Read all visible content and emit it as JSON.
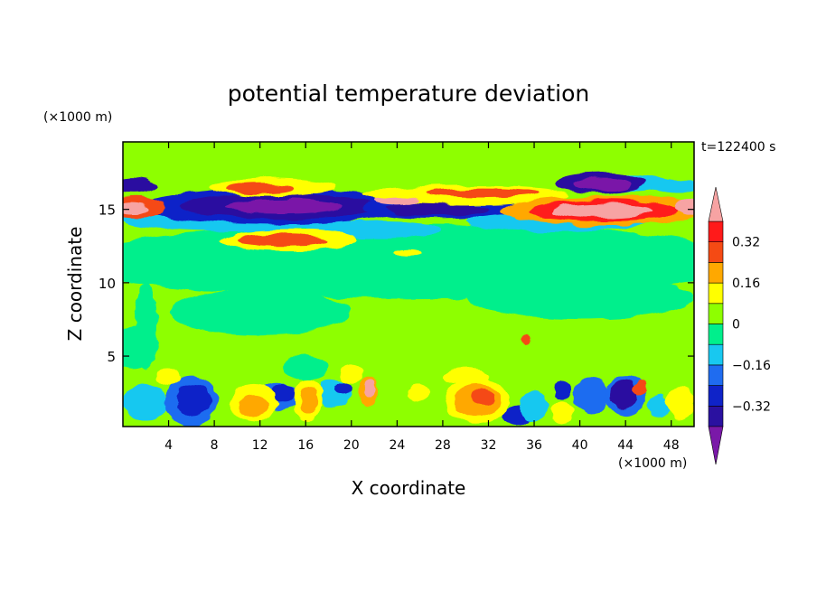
{
  "chart_data": {
    "type": "heatmap",
    "title": "potential temperature deviation",
    "xlabel": "X coordinate",
    "ylabel": "Z coordinate",
    "x_unit_label": "(×1000 m)",
    "y_unit_label": "(×1000 m)",
    "time_label": "t=122400 s",
    "xlim": [
      0,
      50
    ],
    "ylim": [
      0.2,
      19.6
    ],
    "x_ticks": [
      4,
      8,
      12,
      16,
      20,
      24,
      28,
      32,
      36,
      40,
      44,
      48
    ],
    "y_ticks": [
      5,
      10,
      15
    ],
    "colorbar": {
      "levels": [
        -0.44,
        -0.4,
        -0.32,
        -0.24,
        -0.16,
        -0.08,
        0,
        0.08,
        0.16,
        0.24,
        0.32,
        0.4,
        0.44
      ],
      "tick_values": [
        0.32,
        0.16,
        0,
        -0.16,
        -0.32
      ],
      "tick_labels": [
        "0.32",
        "0.16",
        "0",
        "-0.16",
        "-0.32"
      ],
      "colors": [
        "#7a19a8",
        "#2a11a0",
        "#0f23c8",
        "#1f6cf0",
        "#18c8f0",
        "#00ef8c",
        "#8eff00",
        "#ffff00",
        "#ffa800",
        "#f54a14",
        "#ff1a1a",
        "#f7a3a3"
      ],
      "extend": "both"
    },
    "features": [
      {
        "kind": "background",
        "value": 0.02
      },
      {
        "x": 25,
        "y": 11.5,
        "rx": 30,
        "ry": 2.5,
        "value": -0.02
      },
      {
        "x": 12,
        "y": 8,
        "rx": 8,
        "ry": 1.5,
        "value": -0.02
      },
      {
        "x": 40,
        "y": 9,
        "rx": 10,
        "ry": 1.5,
        "value": -0.02
      },
      {
        "x": 1,
        "y": 5.5,
        "rx": 2,
        "ry": 1.5,
        "value": -0.02
      },
      {
        "x": 2,
        "y": 7,
        "rx": 1,
        "ry": 3,
        "value": -0.02
      },
      {
        "x": 25,
        "y": 17.5,
        "rx": 4,
        "ry": 1.2,
        "value": 0.02
      },
      {
        "x": 10,
        "y": 14.3,
        "rx": 10,
        "ry": 0.8,
        "value": -0.12
      },
      {
        "x": 38,
        "y": 14.2,
        "rx": 8,
        "ry": 0.7,
        "value": -0.12
      },
      {
        "x": 22,
        "y": 13.6,
        "rx": 6,
        "ry": 0.6,
        "value": -0.12
      },
      {
        "x": 48.5,
        "y": 16.6,
        "rx": 2,
        "ry": 0.5,
        "value": -0.12
      },
      {
        "x": 44,
        "y": 16.8,
        "rx": 4,
        "ry": 0.6,
        "value": -0.12
      },
      {
        "x": 13.2,
        "y": 15.2,
        "rx": 11.5,
        "ry": 1.25,
        "value": -0.3
      },
      {
        "x": 13.5,
        "y": 15.2,
        "rx": 8.5,
        "ry": 0.85,
        "value": -0.36
      },
      {
        "x": 14,
        "y": 15.2,
        "rx": 5,
        "ry": 0.5,
        "value": -0.42
      },
      {
        "x": 28,
        "y": 15.1,
        "rx": 7,
        "ry": 0.75,
        "value": -0.3
      },
      {
        "x": 27.5,
        "y": 15.0,
        "rx": 4.5,
        "ry": 0.45,
        "value": -0.36
      },
      {
        "x": 0.9,
        "y": 16.6,
        "rx": 2,
        "ry": 0.5,
        "value": -0.34
      },
      {
        "x": 41.8,
        "y": 16.8,
        "rx": 4,
        "ry": 0.7,
        "value": -0.34
      },
      {
        "x": 42,
        "y": 16.7,
        "rx": 2.5,
        "ry": 0.4,
        "value": -0.42
      },
      {
        "x": 13,
        "y": 16.5,
        "rx": 5.5,
        "ry": 0.6,
        "value": 0.15
      },
      {
        "x": 12,
        "y": 16.4,
        "rx": 3,
        "ry": 0.35,
        "value": 0.3
      },
      {
        "x": 30,
        "y": 16.0,
        "rx": 9,
        "ry": 0.65,
        "value": 0.15
      },
      {
        "x": 31.5,
        "y": 16.1,
        "rx": 5,
        "ry": 0.35,
        "value": 0.3
      },
      {
        "x": 14.5,
        "y": 12.9,
        "rx": 6,
        "ry": 0.7,
        "value": 0.15
      },
      {
        "x": 14,
        "y": 12.9,
        "rx": 4,
        "ry": 0.4,
        "value": 0.3
      },
      {
        "x": 42,
        "y": 14.9,
        "rx": 9,
        "ry": 1.0,
        "value": 0.2
      },
      {
        "x": 42,
        "y": 14.9,
        "rx": 6.5,
        "ry": 0.75,
        "value": 0.34
      },
      {
        "x": 42,
        "y": 14.9,
        "rx": 4.5,
        "ry": 0.5,
        "value": 0.42
      },
      {
        "x": 1.2,
        "y": 15.1,
        "rx": 2.5,
        "ry": 0.7,
        "value": 0.3
      },
      {
        "x": 0.8,
        "y": 15.1,
        "rx": 1.5,
        "ry": 0.4,
        "value": 0.42
      },
      {
        "x": 49.5,
        "y": 15.1,
        "rx": 1.2,
        "ry": 0.5,
        "value": 0.42
      },
      {
        "x": 24,
        "y": 15.6,
        "rx": 2,
        "ry": 0.3,
        "value": 0.42
      },
      {
        "x": 25,
        "y": 12.1,
        "rx": 1.2,
        "ry": 0.25,
        "value": 0.15
      },
      {
        "x": 2,
        "y": 1.8,
        "rx": 2,
        "ry": 1.2,
        "value": -0.1
      },
      {
        "x": 6,
        "y": 2.0,
        "rx": 2.3,
        "ry": 1.7,
        "value": -0.2
      },
      {
        "x": 6.2,
        "y": 2.0,
        "rx": 1.5,
        "ry": 1.2,
        "value": -0.3
      },
      {
        "x": 13.5,
        "y": 2.2,
        "rx": 1.8,
        "ry": 1.0,
        "value": -0.2
      },
      {
        "x": 14,
        "y": 2.5,
        "rx": 1,
        "ry": 0.6,
        "value": -0.3
      },
      {
        "x": 18.5,
        "y": 2.5,
        "rx": 1.5,
        "ry": 1.0,
        "value": -0.14
      },
      {
        "x": 19.2,
        "y": 2.8,
        "rx": 0.8,
        "ry": 0.5,
        "value": -0.3
      },
      {
        "x": 34.5,
        "y": 0.9,
        "rx": 1.3,
        "ry": 0.7,
        "value": -0.3
      },
      {
        "x": 36,
        "y": 1.6,
        "rx": 1.2,
        "ry": 1.0,
        "value": -0.1
      },
      {
        "x": 41,
        "y": 2.3,
        "rx": 1.6,
        "ry": 1.2,
        "value": -0.2
      },
      {
        "x": 38.4,
        "y": 2.7,
        "rx": 0.8,
        "ry": 0.6,
        "value": -0.3
      },
      {
        "x": 44,
        "y": 2.3,
        "rx": 1.8,
        "ry": 1.4,
        "value": -0.2
      },
      {
        "x": 43.8,
        "y": 2.4,
        "rx": 1.2,
        "ry": 1.0,
        "value": -0.34
      },
      {
        "x": 47,
        "y": 1.6,
        "rx": 1,
        "ry": 0.8,
        "value": -0.1
      },
      {
        "x": 11.5,
        "y": 1.8,
        "rx": 2,
        "ry": 1.3,
        "value": 0.12
      },
      {
        "x": 11.5,
        "y": 1.6,
        "rx": 1.3,
        "ry": 0.8,
        "value": 0.18
      },
      {
        "x": 16.2,
        "y": 2.0,
        "rx": 1.3,
        "ry": 1.4,
        "value": 0.12
      },
      {
        "x": 16.3,
        "y": 2.0,
        "rx": 0.8,
        "ry": 0.9,
        "value": 0.18
      },
      {
        "x": 21.5,
        "y": 2.6,
        "rx": 0.9,
        "ry": 1.1,
        "value": 0.2
      },
      {
        "x": 21.7,
        "y": 2.8,
        "rx": 0.5,
        "ry": 0.6,
        "value": 0.42
      },
      {
        "x": 25.8,
        "y": 2.5,
        "rx": 1,
        "ry": 0.6,
        "value": 0.12
      },
      {
        "x": 31,
        "y": 2.0,
        "rx": 2.8,
        "ry": 1.6,
        "value": 0.12
      },
      {
        "x": 31,
        "y": 2.0,
        "rx": 2.0,
        "ry": 1.1,
        "value": 0.18
      },
      {
        "x": 31.5,
        "y": 2.2,
        "rx": 0.9,
        "ry": 0.5,
        "value": 0.3
      },
      {
        "x": 38.4,
        "y": 1.2,
        "rx": 1,
        "ry": 0.8,
        "value": 0.12
      },
      {
        "x": 45.3,
        "y": 2.8,
        "rx": 0.6,
        "ry": 0.5,
        "value": 0.3
      },
      {
        "x": 48.8,
        "y": 1.8,
        "rx": 1.2,
        "ry": 1.2,
        "value": 0.15
      },
      {
        "x": 4,
        "y": 3.6,
        "rx": 1,
        "ry": 0.6,
        "value": 0.1
      },
      {
        "x": 20,
        "y": 3.8,
        "rx": 1,
        "ry": 0.6,
        "value": 0.1
      },
      {
        "x": 16,
        "y": 4.2,
        "rx": 2,
        "ry": 0.8,
        "value": -0.02
      },
      {
        "x": 30,
        "y": 3.6,
        "rx": 2,
        "ry": 0.5,
        "value": 0.1
      },
      {
        "x": 35.3,
        "y": 6.2,
        "rx": 0.35,
        "ry": 0.3,
        "value": 0.3
      }
    ]
  }
}
